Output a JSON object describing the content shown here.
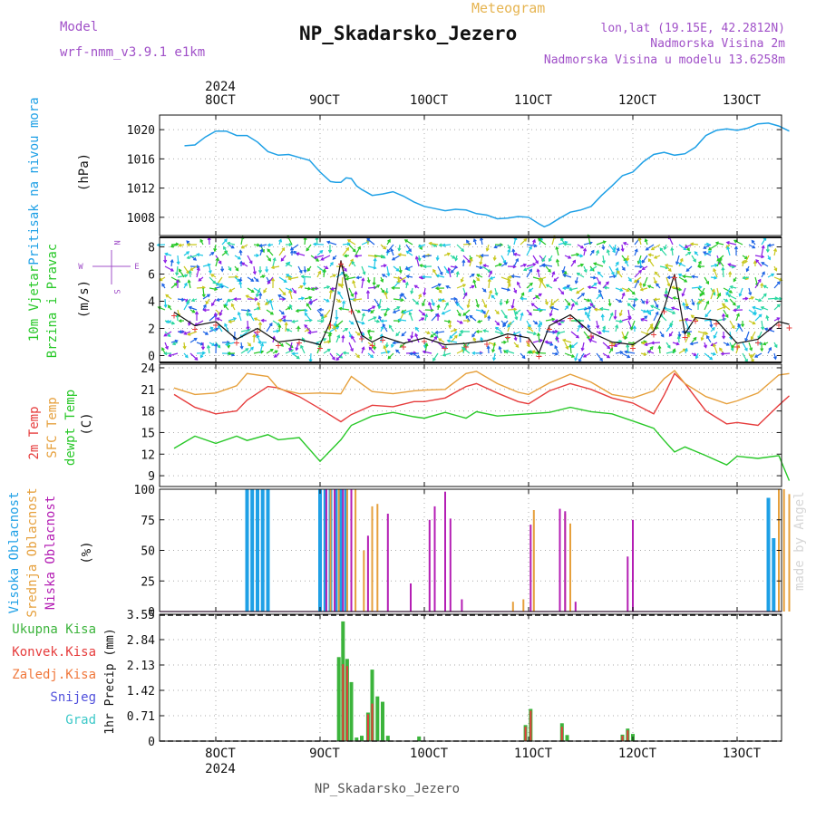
{
  "header": {
    "model_label": "Model",
    "model_name": "wrf-nmm_v3.9.1 e1km",
    "product": "Meteogram",
    "title": "NP_Skadarsko_Jezero",
    "coords": "lon,lat (19.15E, 42.2812N)",
    "elevation": "Nadmorska Visina 2m",
    "model_elevation": "Nadmorska Visina u modelu 13.6258m",
    "credit": "made by Angel",
    "footer": "NP_Skadarsko_Jezero"
  },
  "time_axis": {
    "year": "2024",
    "days": [
      "8OCT",
      "9OCT",
      "10OCT",
      "11OCT",
      "12OCT",
      "13OCT"
    ]
  },
  "panels": {
    "pressure": {
      "labels": [
        "Pritisak na nivou mora",
        "(hPa)"
      ]
    },
    "wind": {
      "labels": [
        "10m Vjetar",
        "Brzina i Pravac",
        "(m/s)"
      ],
      "compass": [
        "N",
        "E",
        "S",
        "W"
      ]
    },
    "temperature": {
      "labels": [
        "2m Temp",
        "SFC Temp",
        "dewpt Temp",
        "(C)"
      ]
    },
    "cloud": {
      "labels": [
        "Visoka Oblacnost",
        "Srednja Oblacnost",
        "Niska Oblacnost",
        "(%)"
      ]
    },
    "precip": {
      "legend": [
        "Ukupna Kisa",
        "Konvek.Kisa",
        "Zaledj.Kisa",
        "Snijeg",
        "Grad"
      ],
      "ylabel": "1hr Precip (mm)"
    }
  },
  "colors": {
    "pressure": "#1ea0e6",
    "t2m": "#e63c3c",
    "sfc": "#e6a03c",
    "dewpt": "#28c828",
    "high_cloud": "#1ea0e6",
    "mid_cloud": "#e6a03c",
    "low_cloud": "#b41eb4",
    "total_rain": "#3cb43c",
    "conv_rain": "#e63c3c",
    "frz_rain": "#f0783c",
    "snow": "#5050dc",
    "graupel": "#3cc8c8",
    "model_label": "#a050c8",
    "product": "#e6b450"
  },
  "chart_data": [
    {
      "type": "line",
      "panel": "pressure",
      "ylabel": "Pritisak na nivou mora (hPa)",
      "ylim": [
        1005.5,
        1022
      ],
      "yticks": [
        1008,
        1012,
        1016,
        1020
      ],
      "x": [
        7.7,
        7.8,
        7.9,
        8.0,
        8.1,
        8.2,
        8.3,
        8.4,
        8.5,
        8.6,
        8.7,
        8.8,
        8.9,
        9.0,
        9.1,
        9.15,
        9.2,
        9.25,
        9.3,
        9.35,
        9.4,
        9.5,
        9.6,
        9.7,
        9.8,
        9.9,
        10.0,
        10.1,
        10.2,
        10.3,
        10.4,
        10.5,
        10.6,
        10.7,
        10.8,
        10.9,
        11.0,
        11.1,
        11.15,
        11.2,
        11.3,
        11.4,
        11.5,
        11.6,
        11.7,
        11.8,
        11.9,
        12.0,
        12.1,
        12.2,
        12.3,
        12.4,
        12.5,
        12.6,
        12.7,
        12.8,
        12.9,
        13.0,
        13.1,
        13.2,
        13.3,
        13.4,
        13.5
      ],
      "series": [
        {
          "values": [
            1017.8,
            1017.9,
            1019.0,
            1019.8,
            1019.8,
            1019.2,
            1019.2,
            1018.3,
            1017.0,
            1016.5,
            1016.6,
            1016.2,
            1015.8,
            1014.2,
            1012.9,
            1012.8,
            1012.8,
            1013.4,
            1013.3,
            1012.3,
            1011.8,
            1011.0,
            1011.2,
            1011.5,
            1010.9,
            1010.1,
            1009.5,
            1009.2,
            1008.9,
            1009.1,
            1009.0,
            1008.5,
            1008.3,
            1007.8,
            1007.9,
            1008.1,
            1008.0,
            1007.1,
            1006.7,
            1007.0,
            1007.9,
            1008.7,
            1009.0,
            1009.5,
            1011.0,
            1012.3,
            1013.7,
            1014.2,
            1015.6,
            1016.6,
            1016.9,
            1016.5,
            1016.7,
            1017.6,
            1019.2,
            1019.9,
            1020.1,
            1019.9,
            1020.2,
            1020.8,
            1020.9,
            1020.5,
            1019.8
          ]
        }
      ]
    },
    {
      "type": "line",
      "panel": "wind",
      "ylabel": "10m Vjetar Brzina i Pravac (m/s)",
      "ylim": [
        -0.5,
        8.7
      ],
      "yticks": [
        0,
        2,
        4,
        6,
        8
      ],
      "x": [
        7.6,
        7.8,
        8.0,
        8.2,
        8.4,
        8.6,
        8.8,
        9.0,
        9.1,
        9.2,
        9.3,
        9.4,
        9.5,
        9.6,
        9.8,
        10.0,
        10.2,
        10.4,
        10.6,
        10.8,
        11.0,
        11.1,
        11.2,
        11.4,
        11.6,
        11.8,
        12.0,
        12.2,
        12.3,
        12.4,
        12.5,
        12.6,
        12.8,
        13.0,
        13.2,
        13.4,
        13.5
      ],
      "series": [
        {
          "values": [
            3.2,
            2.2,
            2.5,
            1.2,
            2.0,
            1.0,
            1.2,
            0.8,
            2.5,
            7.0,
            3.5,
            1.5,
            1.0,
            1.4,
            0.9,
            1.3,
            0.8,
            0.9,
            1.1,
            1.6,
            1.3,
            0.2,
            2.2,
            3.0,
            1.7,
            1.0,
            0.8,
            1.8,
            3.5,
            6.0,
            1.6,
            2.8,
            2.6,
            0.9,
            1.2,
            2.5,
            2.3
          ]
        }
      ]
    },
    {
      "type": "line",
      "panel": "temperature",
      "ylabel": "(C)",
      "ylim": [
        7.5,
        24.5
      ],
      "yticks": [
        9,
        12,
        15,
        18,
        21,
        24
      ],
      "x": [
        7.6,
        7.8,
        8.0,
        8.2,
        8.3,
        8.5,
        8.6,
        8.8,
        9.0,
        9.2,
        9.3,
        9.5,
        9.7,
        9.9,
        10.0,
        10.2,
        10.4,
        10.5,
        10.7,
        10.9,
        11.0,
        11.2,
        11.4,
        11.6,
        11.8,
        12.0,
        12.2,
        12.3,
        12.4,
        12.5,
        12.7,
        12.9,
        13.0,
        13.2,
        13.4,
        13.5
      ],
      "series": [
        {
          "name": "2m Temp",
          "values": [
            20.3,
            18.5,
            17.6,
            18.0,
            19.5,
            21.4,
            21.2,
            20.0,
            18.3,
            16.5,
            17.5,
            18.8,
            18.6,
            19.3,
            19.3,
            19.8,
            21.4,
            21.8,
            20.5,
            19.3,
            19.0,
            20.8,
            21.8,
            21.0,
            19.8,
            19.1,
            17.6,
            20.2,
            23.2,
            21.8,
            18.0,
            16.2,
            16.4,
            16.0,
            18.8,
            20.1
          ]
        },
        {
          "name": "SFC Temp",
          "values": [
            21.2,
            20.3,
            20.5,
            21.5,
            23.2,
            22.8,
            21.1,
            20.4,
            20.5,
            20.4,
            22.8,
            20.7,
            20.4,
            20.8,
            20.9,
            21.0,
            23.2,
            23.5,
            21.8,
            20.6,
            20.3,
            21.9,
            23.1,
            22.0,
            20.3,
            19.8,
            20.8,
            22.5,
            23.6,
            21.8,
            20.0,
            19.0,
            19.4,
            20.5,
            23.0,
            23.2
          ]
        },
        {
          "name": "dewpt Temp",
          "values": [
            12.8,
            14.5,
            13.5,
            14.5,
            13.9,
            14.7,
            14.0,
            14.3,
            11.0,
            14.0,
            16.0,
            17.3,
            17.8,
            17.2,
            17.0,
            17.8,
            17.0,
            17.9,
            17.3,
            17.5,
            17.6,
            17.8,
            18.5,
            17.9,
            17.6,
            16.6,
            15.6,
            13.9,
            12.3,
            13.0,
            11.8,
            10.5,
            11.7,
            11.4,
            11.8,
            8.3
          ]
        }
      ]
    },
    {
      "type": "bar",
      "panel": "cloud",
      "ylabel": "(%)",
      "ylim": [
        0,
        100
      ],
      "yticks": [
        0,
        25,
        50,
        75,
        100
      ],
      "series": [
        {
          "name": "Visoka Oblacnost",
          "x": [
            8.3,
            8.35,
            8.4,
            8.45,
            8.5,
            9.0,
            9.05,
            9.1,
            9.15,
            9.2,
            9.25,
            13.3,
            13.35
          ],
          "values": [
            100,
            100,
            100,
            100,
            100,
            100,
            100,
            100,
            100,
            100,
            100,
            93,
            60
          ]
        },
        {
          "name": "Srednja Oblacnost",
          "x": [
            9.1,
            9.18,
            9.26,
            9.34,
            9.42,
            9.5,
            9.55,
            10.85,
            10.95,
            11.05,
            11.35,
            11.4,
            13.4,
            13.45,
            13.5
          ],
          "values": [
            100,
            100,
            100,
            100,
            50,
            86,
            88,
            8,
            10,
            83,
            80,
            72,
            100,
            100,
            96
          ]
        },
        {
          "name": "Niska Oblacnost",
          "x": [
            9.06,
            9.14,
            9.22,
            9.3,
            9.46,
            9.65,
            9.87,
            10.05,
            10.1,
            10.2,
            10.25,
            10.36,
            11.02,
            11.3,
            11.35,
            11.45,
            11.95,
            12.0
          ],
          "values": [
            100,
            100,
            100,
            100,
            62,
            80,
            23,
            75,
            86,
            98,
            76,
            10,
            71,
            84,
            82,
            8,
            45,
            75
          ]
        }
      ]
    },
    {
      "type": "bar",
      "panel": "precip",
      "ylabel": "1hr Precip (mm)",
      "ylim": [
        0,
        3.55
      ],
      "yticks": [
        0,
        0.71,
        1.42,
        2.13,
        2.84,
        3.55
      ],
      "series": [
        {
          "name": "Ukupna Kisa",
          "x": [
            9.18,
            9.22,
            9.26,
            9.3,
            9.35,
            9.4,
            9.46,
            9.5,
            9.55,
            9.6,
            9.65,
            9.95,
            10.97,
            11.02,
            11.32,
            11.37,
            11.9,
            11.95,
            12.0
          ],
          "values": [
            2.35,
            3.35,
            2.3,
            1.65,
            0.1,
            0.15,
            0.8,
            2.0,
            1.25,
            1.1,
            0.15,
            0.13,
            0.45,
            0.9,
            0.5,
            0.17,
            0.18,
            0.35,
            0.2
          ]
        },
        {
          "name": "Konvek.Kisa",
          "x": [
            9.22,
            9.26,
            9.46,
            9.5,
            10.97,
            11.02,
            11.32,
            11.9,
            11.95
          ],
          "values": [
            2.15,
            2.1,
            0.75,
            1.05,
            0.4,
            0.85,
            0.4,
            0.15,
            0.3
          ]
        }
      ]
    }
  ]
}
